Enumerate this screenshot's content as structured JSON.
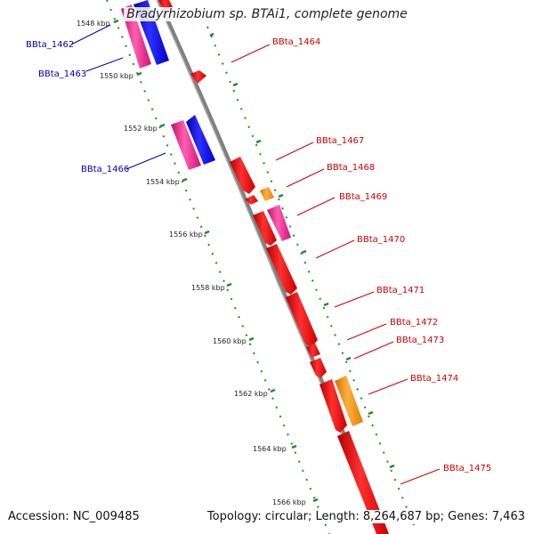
{
  "title": "Bradyrhizobium sp. BTAi1, complete genome",
  "footer": {
    "accession": "Accession: NC_009485",
    "topology": "Topology: circular; Length: 8,264,687 bp; Genes: 7,463"
  },
  "scale_ticks": [
    "1548 kbp",
    "1550 kbp",
    "1552 kbp",
    "1554 kbp",
    "1556 kbp",
    "1558 kbp",
    "1560 kbp",
    "1562 kbp",
    "1564 kbp",
    "1566 kbp"
  ],
  "genes_left": [
    {
      "label": "BBta_1462"
    },
    {
      "label": "BBta_1463"
    },
    {
      "label": "BBta_1466"
    }
  ],
  "genes_right": [
    {
      "label": "BBta_1464"
    },
    {
      "label": "BBta_1467"
    },
    {
      "label": "BBta_1468"
    },
    {
      "label": "BBta_1469"
    },
    {
      "label": "BBta_1470"
    },
    {
      "label": "BBta_1471"
    },
    {
      "label": "BBta_1472"
    },
    {
      "label": "BBta_1473"
    },
    {
      "label": "BBta_1474"
    },
    {
      "label": "BBta_1475"
    }
  ],
  "colors": {
    "backbone": "#808080",
    "red_gene": "#ff0000",
    "pink_gene": "#ff1493",
    "blue_gene": "#0000ff",
    "orange_gene": "#ff8c00",
    "dotted_guide": "#228b22",
    "left_label": "#0000b0",
    "right_label": "#cc0000"
  }
}
